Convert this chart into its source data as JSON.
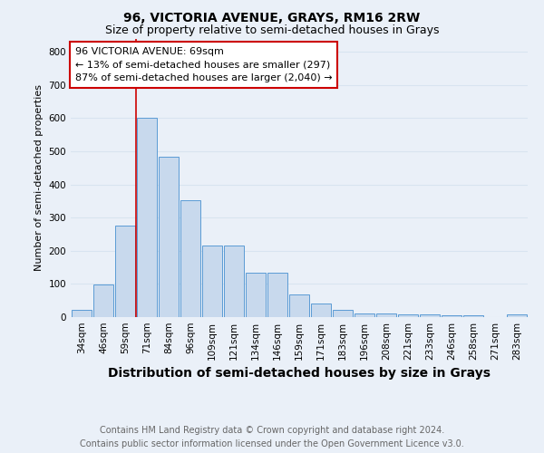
{
  "title": "96, VICTORIA AVENUE, GRAYS, RM16 2RW",
  "subtitle": "Size of property relative to semi-detached houses in Grays",
  "xlabel": "Distribution of semi-detached houses by size in Grays",
  "ylabel": "Number of semi-detached properties",
  "categories": [
    "34sqm",
    "46sqm",
    "59sqm",
    "71sqm",
    "84sqm",
    "96sqm",
    "109sqm",
    "121sqm",
    "134sqm",
    "146sqm",
    "159sqm",
    "171sqm",
    "183sqm",
    "196sqm",
    "208sqm",
    "221sqm",
    "233sqm",
    "246sqm",
    "258sqm",
    "271sqm",
    "283sqm"
  ],
  "values": [
    22,
    97,
    275,
    600,
    483,
    352,
    215,
    215,
    135,
    135,
    67,
    40,
    22,
    12,
    12,
    8,
    8,
    5,
    5,
    0,
    8
  ],
  "bar_color": "#c8d9ed",
  "bar_edge_color": "#5b9bd5",
  "property_line_index": 3,
  "property_sqm": "69sqm",
  "pct_smaller": 13,
  "count_smaller": 297,
  "pct_larger": 87,
  "count_larger": 2040,
  "annotation_box_color": "#ffffff",
  "annotation_box_edge": "#cc0000",
  "property_line_color": "#cc0000",
  "footer_line1": "Contains HM Land Registry data © Crown copyright and database right 2024.",
  "footer_line2": "Contains public sector information licensed under the Open Government Licence v3.0.",
  "ylim": [
    0,
    840
  ],
  "yticks": [
    0,
    100,
    200,
    300,
    400,
    500,
    600,
    700,
    800
  ],
  "background_color": "#eaf0f8",
  "grid_color": "#d8e4f0",
  "title_fontsize": 10,
  "subtitle_fontsize": 9,
  "xlabel_fontsize": 10,
  "ylabel_fontsize": 8,
  "tick_fontsize": 7.5,
  "footer_fontsize": 7,
  "ann_fontsize": 8
}
